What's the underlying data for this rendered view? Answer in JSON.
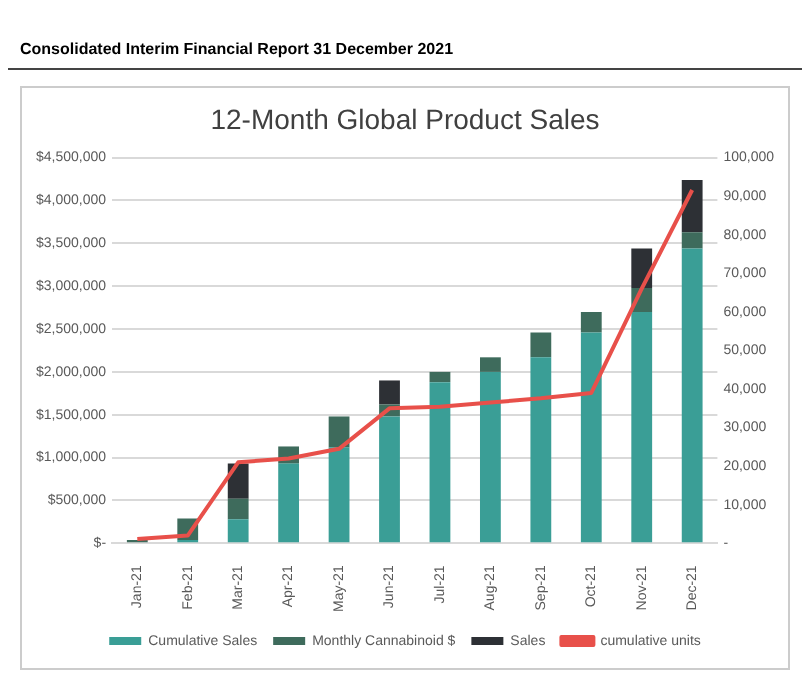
{
  "chart_data": {
    "type": "bar",
    "title": "12-Month Global Product Sales",
    "stacked": true,
    "annotations": [
      "Consolidated Interim Financial Report 31 December 2021"
    ],
    "categories": [
      "Jan-21",
      "Feb-21",
      "Mar-21",
      "Apr-21",
      "May-21",
      "Jun-21",
      "Jul-21",
      "Aug-21",
      "Sep-21",
      "Oct-21",
      "Nov-21",
      "Dec-21"
    ],
    "series": [
      {
        "name": "Cumulative Sales",
        "color": "#3a9e96",
        "values": [
          null,
          40000,
          280000,
          930000,
          1120000,
          1480000,
          1880000,
          2000000,
          2170000,
          2460000,
          2700000,
          3440000
        ]
      },
      {
        "name": "Monthly Cannabinoid $",
        "color": "#3e6b5c",
        "values": [
          40000,
          250000,
          240000,
          200000,
          360000,
          140000,
          120000,
          170000,
          290000,
          240000,
          280000,
          190000
        ]
      },
      {
        "name": "Sales",
        "color": "#2d3035",
        "values": [
          0,
          0,
          410000,
          0,
          0,
          280000,
          0,
          0,
          0,
          0,
          460000,
          610000
        ]
      },
      {
        "name": "cumulative units",
        "type": "line",
        "axis": "y2",
        "color": "#e8504a",
        "values": [
          1100,
          2000,
          21000,
          22000,
          24500,
          35000,
          35400,
          36500,
          37600,
          39000,
          66000,
          91600
        ]
      }
    ],
    "ylim": [
      0,
      4500000
    ],
    "yticks": [
      {
        "value": 0,
        "label": "$-"
      },
      {
        "value": 500000,
        "label": "$500,000"
      },
      {
        "value": 1000000,
        "label": "$1,000,000"
      },
      {
        "value": 1500000,
        "label": "$1,500,000"
      },
      {
        "value": 2000000,
        "label": "$2,000,000"
      },
      {
        "value": 2500000,
        "label": "$2,500,000"
      },
      {
        "value": 3000000,
        "label": "$3,000,000"
      },
      {
        "value": 3500000,
        "label": "$3,500,000"
      },
      {
        "value": 4000000,
        "label": "$4,000,000"
      },
      {
        "value": 4500000,
        "label": "$4,500,000"
      }
    ],
    "y2lim": [
      0,
      100000
    ],
    "y2ticks": [
      {
        "value": 0,
        "label": "-"
      },
      {
        "value": 10000,
        "label": "10,000"
      },
      {
        "value": 20000,
        "label": "20,000"
      },
      {
        "value": 30000,
        "label": "30,000"
      },
      {
        "value": 40000,
        "label": "40,000"
      },
      {
        "value": 50000,
        "label": "50,000"
      },
      {
        "value": 60000,
        "label": "60,000"
      },
      {
        "value": 70000,
        "label": "70,000"
      },
      {
        "value": 80000,
        "label": "80,000"
      },
      {
        "value": 90000,
        "label": "90,000"
      },
      {
        "value": 100000,
        "label": "100,000"
      }
    ],
    "grid": "y",
    "legend": "bottom"
  }
}
